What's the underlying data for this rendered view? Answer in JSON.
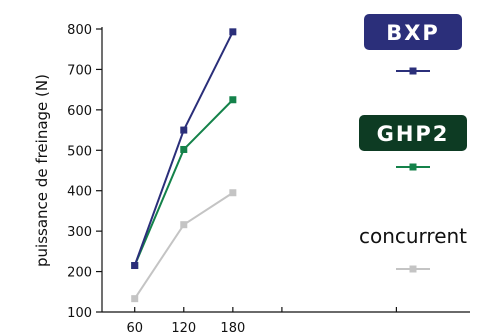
{
  "chart_data": {
    "type": "line",
    "ylabel": "puissance de freinage (N)",
    "xlabel": "",
    "x": [
      60,
      120,
      180
    ],
    "xlim": [
      20,
      470
    ],
    "x_tick_marks": [
      60,
      120,
      180,
      240,
      380
    ],
    "ylim": [
      100,
      800
    ],
    "y_ticks": [
      100,
      200,
      300,
      400,
      500,
      600,
      700,
      800
    ],
    "grid": false,
    "legend_position": "right",
    "series": [
      {
        "name": "BXP",
        "color": "#2b2f7a",
        "values": [
          215,
          550,
          793
        ],
        "legend_style": "badge"
      },
      {
        "name": "GHP2",
        "color": "#14824a",
        "values": [
          215,
          502,
          625
        ],
        "legend_style": "badge",
        "badge_color": "#0d3b23"
      },
      {
        "name": "concurrent",
        "color": "#c4c4c4",
        "values": [
          133,
          316,
          395
        ],
        "legend_style": "text"
      }
    ]
  }
}
